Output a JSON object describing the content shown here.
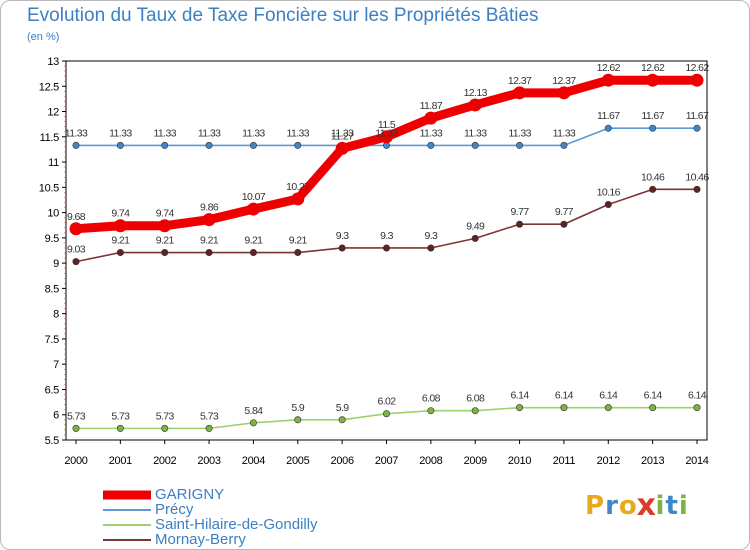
{
  "title": "Evolution du Taux de Taxe Foncière sur les Propriétés Bâties",
  "subtitle": "(en %)",
  "logo": {
    "letters": [
      "P",
      "r",
      "o",
      "x",
      "i",
      "t",
      "i"
    ],
    "colors": [
      "#e8a91f",
      "#3f87c8",
      "#e8a91f",
      "#dc3b2a",
      "#7db342",
      "#3f87c8",
      "#7db342"
    ]
  },
  "chart_data": {
    "type": "line",
    "title": "Evolution du Taux de Taxe Foncière sur les Propriétés Bâties",
    "ylabel": "(en %)",
    "xlabel": "",
    "x": [
      "2000",
      "2001",
      "2002",
      "2003",
      "2004",
      "2005",
      "2006",
      "2007",
      "2008",
      "2009",
      "2010",
      "2011",
      "2012",
      "2013",
      "2014"
    ],
    "ylim": [
      5.5,
      13
    ],
    "yticks": [
      "5.5",
      "6",
      "6.5",
      "7",
      "7.5",
      "8",
      "8.5",
      "9",
      "9.5",
      "10",
      "10.5",
      "11",
      "11.5",
      "12",
      "12.5",
      "13"
    ],
    "grid": false,
    "legend_position": "bottom-left",
    "series": [
      {
        "name": "Précy",
        "color": "#5b9bd5",
        "marker": "#3f87c8",
        "values": [
          11.33,
          11.33,
          11.33,
          11.33,
          11.33,
          11.33,
          11.33,
          11.33,
          11.33,
          11.33,
          11.33,
          11.33,
          11.67,
          11.67,
          11.67
        ],
        "labels": [
          "11.33",
          "11.33",
          "11.33",
          "11.33",
          "11.33",
          "11.33",
          "11.33",
          "11.33",
          "11.33",
          "11.33",
          "11.33",
          "11.33",
          "11.67",
          "11.67",
          "11.67"
        ]
      },
      {
        "name": "Saint-Hilaire-de-Gondilly",
        "color": "#9cd16c",
        "marker": "#7db342",
        "values": [
          5.73,
          5.73,
          5.73,
          5.73,
          5.84,
          5.9,
          5.9,
          6.02,
          6.08,
          6.08,
          6.14,
          6.14,
          6.14,
          6.14,
          6.14
        ],
        "labels": [
          "5.73",
          "5.73",
          "5.73",
          "5.73",
          "5.84",
          "5.9",
          "5.9",
          "6.02",
          "6.08",
          "6.08",
          "6.14",
          "6.14",
          "6.14",
          "6.14",
          "6.14"
        ]
      },
      {
        "name": "Mornay-Berry",
        "color": "#7b3535",
        "marker": "#5e2323",
        "values": [
          9.03,
          9.21,
          9.21,
          9.21,
          9.21,
          9.21,
          9.3,
          9.3,
          9.3,
          9.49,
          9.77,
          9.77,
          10.16,
          10.46,
          10.46
        ],
        "labels": [
          "9.03",
          "9.21",
          "9.21",
          "9.21",
          "9.21",
          "9.21",
          "9.3",
          "9.3",
          "9.3",
          "9.49",
          "9.77",
          "9.77",
          "10.16",
          "10.46",
          "10.46"
        ]
      },
      {
        "name": "GARIGNY",
        "color": "#ee0000",
        "marker": "#ee0000",
        "values": [
          9.68,
          9.74,
          9.74,
          9.86,
          10.07,
          10.27,
          11.27,
          11.5,
          11.87,
          12.13,
          12.37,
          12.37,
          12.62,
          12.62,
          12.62
        ],
        "labels": [
          "9.68",
          "9.74",
          "9.74",
          "9.86",
          "10.07",
          "10.27",
          "11.27",
          "11.5",
          "11.87",
          "12.13",
          "12.37",
          "12.37",
          "12.62",
          "12.62",
          "12.62"
        ]
      }
    ],
    "legend_order": [
      "GARIGNY",
      "Précy",
      "Saint-Hilaire-de-Gondilly",
      "Mornay-Berry"
    ]
  }
}
